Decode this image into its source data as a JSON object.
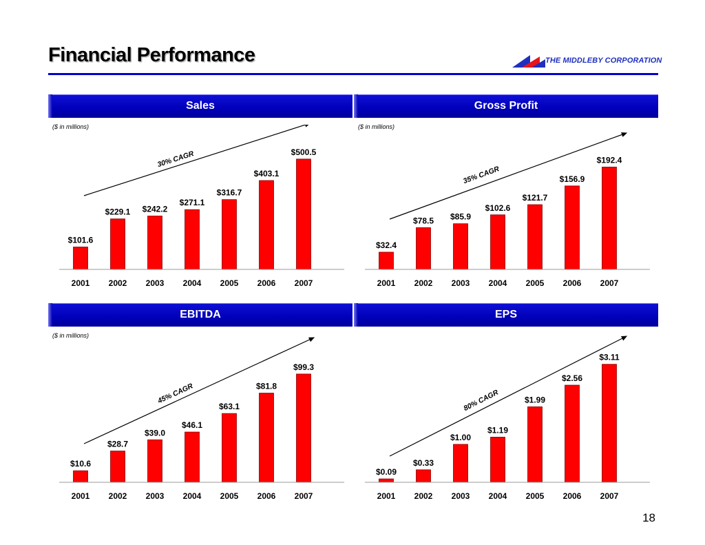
{
  "header": {
    "title": "Financial Performance",
    "logo_text": "THE MIDDLEBY CORPORATION",
    "accent_color": "#0000cc",
    "logo_icon": "middleby-logo-icon"
  },
  "colors": {
    "panel_header": "#0000b8",
    "bar": "#ff0000",
    "bar_stroke": "#8a0000"
  },
  "page_number": "18",
  "chart_data": [
    {
      "type": "bar",
      "title": "Sales",
      "unit_note": "($ in millions)",
      "categories": [
        "2001",
        "2002",
        "2003",
        "2004",
        "2005",
        "2006",
        "2007"
      ],
      "values": [
        101.6,
        229.1,
        242.2,
        271.1,
        316.7,
        403.1,
        500.5
      ],
      "labels": [
        "$101.6",
        "$229.1",
        "$242.2",
        "$271.1",
        "$316.7",
        "$403.1",
        "$500.5"
      ],
      "ylim": [
        0,
        575
      ],
      "trend_label": "30% CAGR",
      "grid": false,
      "legend": "none"
    },
    {
      "type": "bar",
      "title": "Gross Profit",
      "unit_note": "($ in millions)",
      "categories": [
        "2001",
        "2002",
        "2003",
        "2004",
        "2005",
        "2006",
        "2007"
      ],
      "values": [
        32.4,
        78.5,
        85.9,
        102.6,
        121.7,
        156.9,
        192.4
      ],
      "labels": [
        "$32.4",
        "$78.5",
        "$85.9",
        "$102.6",
        "$121.7",
        "$156.9",
        "$192.4"
      ],
      "ylim": [
        0,
        215
      ],
      "trend_label": "35% CAGR",
      "grid": false,
      "legend": "none"
    },
    {
      "type": "bar",
      "title": "EBITDA",
      "unit_note": "($ in millions)",
      "categories": [
        "2001",
        "2002",
        "2003",
        "2004",
        "2005",
        "2006",
        "2007"
      ],
      "values": [
        10.6,
        28.7,
        39.0,
        46.1,
        63.1,
        81.8,
        99.3
      ],
      "labels": [
        "$10.6",
        "$28.7",
        "$39.0",
        "$46.1",
        "$63.1",
        "$81.8",
        "$99.3"
      ],
      "ylim": [
        0,
        115
      ],
      "trend_label": "45% CAGR",
      "grid": false,
      "legend": "none"
    },
    {
      "type": "bar",
      "title": "EPS",
      "unit_note": "",
      "categories": [
        "2001",
        "2002",
        "2003",
        "2004",
        "2005",
        "2006",
        "2007"
      ],
      "values": [
        0.09,
        0.33,
        1.0,
        1.19,
        1.99,
        2.56,
        3.11
      ],
      "labels": [
        "$0.09",
        "$0.33",
        "$1.00",
        "$1.19",
        "$1.99",
        "$2.56",
        "$3.11"
      ],
      "ylim": [
        0,
        3.45
      ],
      "trend_label": "80% CAGR",
      "grid": false,
      "legend": "none"
    }
  ]
}
